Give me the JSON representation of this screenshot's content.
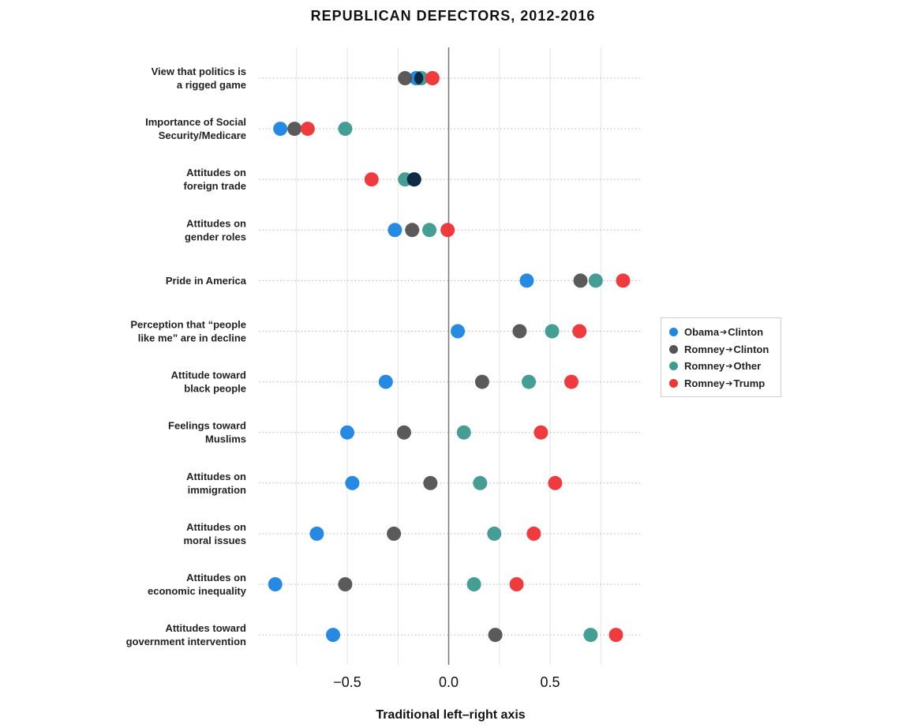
{
  "chart_data": {
    "type": "scatter",
    "title": "REPUBLICAN DEFECTORS,  2012-2016",
    "xlabel": "Traditional left–right axis",
    "xlim": [
      -0.95,
      0.95
    ],
    "xticks": [
      {
        "value": -0.5,
        "label": "−0.5"
      },
      {
        "value": 0.0,
        "label": "0.0"
      },
      {
        "value": 0.5,
        "label": "0.5"
      }
    ],
    "gridlines_at": [
      -0.75,
      -0.5,
      -0.25,
      0.25,
      0.5,
      0.75
    ],
    "categories": [
      [
        "View that politics is",
        "a rigged game"
      ],
      [
        "Importance of Social",
        "Security/Medicare"
      ],
      [
        "Attitudes on",
        "foreign trade"
      ],
      [
        "Attitudes on",
        "gender roles"
      ],
      [
        "Pride in America"
      ],
      [
        "Perception that “people",
        "like me” are in decline"
      ],
      [
        "Attitude toward",
        "black people"
      ],
      [
        "Feelings toward",
        "Muslims"
      ],
      [
        "Attitudes on",
        "immigration"
      ],
      [
        "Attitudes on",
        "moral issues"
      ],
      [
        "Attitudes on",
        "economic inequality"
      ],
      [
        "Attitudes toward",
        "government intervention"
      ]
    ],
    "series": [
      {
        "name_parts": [
          "Obama",
          "Clinton"
        ],
        "color": "#1f86e2",
        "values": [
          -0.16,
          -0.83,
          -0.17,
          -0.265,
          0.385,
          0.045,
          -0.31,
          -0.5,
          -0.475,
          -0.65,
          -0.855,
          -0.57
        ]
      },
      {
        "name_parts": [
          "Romney",
          "Clinton"
        ],
        "color": "#555555",
        "values": [
          -0.215,
          -0.76,
          -0.17,
          -0.18,
          0.65,
          0.35,
          0.165,
          -0.22,
          -0.09,
          -0.27,
          -0.51,
          0.23
        ]
      },
      {
        "name_parts": [
          "Romney",
          "Other"
        ],
        "color": "#3f9b91",
        "values": [
          -0.135,
          -0.51,
          -0.215,
          -0.095,
          0.725,
          0.51,
          0.395,
          0.075,
          0.155,
          0.225,
          0.125,
          0.7
        ]
      },
      {
        "name_parts": [
          "Romney",
          "Trump"
        ],
        "color": "#ef3538",
        "values": [
          -0.08,
          -0.695,
          -0.38,
          -0.005,
          0.86,
          0.645,
          0.605,
          0.455,
          0.525,
          0.42,
          0.335,
          0.825
        ]
      }
    ],
    "overlap_color": "#0d2b45",
    "grid": true,
    "legend_position": "right"
  }
}
